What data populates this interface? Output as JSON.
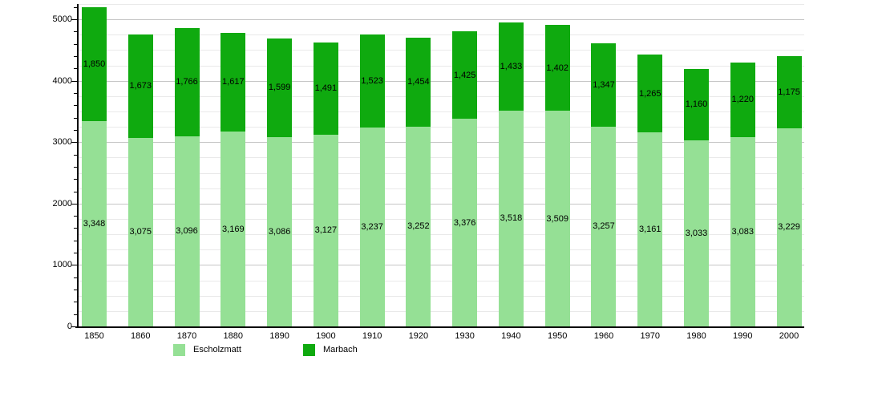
{
  "chart_data": {
    "type": "bar",
    "stacked": true,
    "title": "",
    "xlabel": "",
    "ylabel": "",
    "categories": [
      "1850",
      "1860",
      "1870",
      "1880",
      "1890",
      "1900",
      "1910",
      "1920",
      "1930",
      "1940",
      "1950",
      "1960",
      "1970",
      "1980",
      "1990",
      "2000"
    ],
    "series": [
      {
        "name": "Escholzmatt",
        "color": "#95e095",
        "values": [
          3348,
          3075,
          3096,
          3169,
          3086,
          3127,
          3237,
          3252,
          3376,
          3518,
          3509,
          3257,
          3161,
          3033,
          3083,
          3229
        ],
        "labels": [
          "3,348",
          "3,075",
          "3,096",
          "3,169",
          "3,086",
          "3,127",
          "3,237",
          "3,252",
          "3,376",
          "3,518",
          "3,509",
          "3,257",
          "3,161",
          "3,033",
          "3,083",
          "3,229"
        ]
      },
      {
        "name": "Marbach",
        "color": "#0faa0f",
        "values": [
          1850,
          1673,
          1766,
          1617,
          1599,
          1491,
          1523,
          1454,
          1425,
          1433,
          1402,
          1347,
          1265,
          1160,
          1220,
          1175
        ],
        "labels": [
          "1,850",
          "1,673",
          "1,766",
          "1,617",
          "1,599",
          "1,491",
          "1,523",
          "1,454",
          "1,425",
          "1,433",
          "1,402",
          "1,347",
          "1,265",
          "1,160",
          "1,220",
          "1,175"
        ]
      }
    ],
    "ylim": [
      0,
      5250
    ],
    "y_tick_labels": [
      "0",
      "1000",
      "2000",
      "3000",
      "4000",
      "5000"
    ],
    "y_major_step": 1000,
    "y_minor_grid_step": 250,
    "y_minor_tick_step": 200,
    "grid": "horizontal",
    "legend_position": "bottom",
    "value_labels_position": "centered inside each segment"
  }
}
